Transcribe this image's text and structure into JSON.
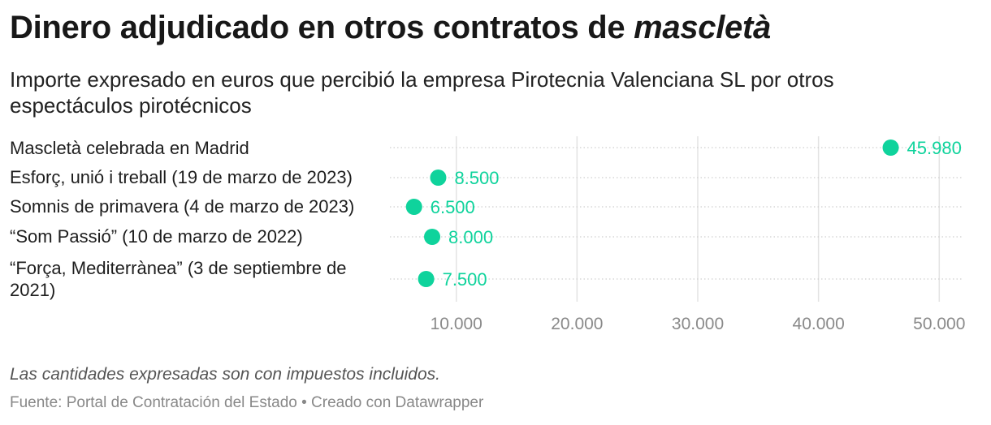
{
  "header": {
    "title_main": "Dinero adjudicado en otros contratos de ",
    "title_italic": "mascletà",
    "subtitle": "Importe expresado en euros que percibió la empresa Pirotecnia Valenciana SL por otros espectáculos pirotécnicos"
  },
  "chart_data": {
    "type": "scatter",
    "categories": [
      "Mascletà celebrada en Madrid",
      "Esforç, unió i treball (19 de marzo de 2023)",
      "Somnis de primavera (4 de marzo de 2023)",
      "“Som Passió” (10 de marzo de 2022)",
      "“Força, Mediterrànea” (3 de septiembre de 2021)"
    ],
    "values": [
      45980,
      8500,
      6500,
      8000,
      7500
    ],
    "value_labels": [
      "45.980",
      "8.500",
      "6.500",
      "8.000",
      "7.500"
    ],
    "xticks": [
      10000,
      20000,
      30000,
      40000,
      50000
    ],
    "xtick_labels": [
      "10.000",
      "20.000",
      "30.000",
      "40.000",
      "50.000"
    ],
    "xlim": [
      4500,
      52000
    ],
    "color": "#0fd39c",
    "grid": true
  },
  "footer": {
    "note": "Las cantidades expresadas son con impuestos incluidos.",
    "source": "Fuente: Portal de Contratación del Estado • Creado con Datawrapper"
  }
}
